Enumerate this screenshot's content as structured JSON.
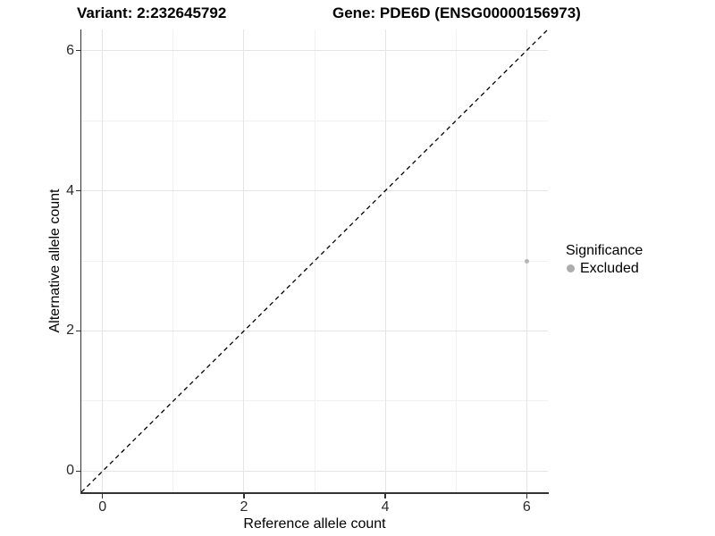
{
  "header": {
    "variant_title": "Variant: 2:232645792",
    "gene_title": "Gene: PDE6D (ENSG00000156973)"
  },
  "chart_data": {
    "type": "scatter",
    "title_left": "Variant: 2:232645792",
    "title_right": "Gene: PDE6D (ENSG00000156973)",
    "xlabel": "Reference allele count",
    "ylabel": "Alternative allele count",
    "xlim": [
      -0.3,
      6.3
    ],
    "ylim": [
      -0.3,
      6.3
    ],
    "x_ticks": [
      0,
      2,
      4,
      6
    ],
    "y_ticks": [
      0,
      2,
      4,
      6
    ],
    "x_minor_ticks": [
      1,
      3,
      5
    ],
    "y_minor_ticks": [
      1,
      3,
      5
    ],
    "grid": "major+minor",
    "points": [
      {
        "x": 6,
        "y": 3,
        "series": "Excluded",
        "color": "#b5b5b5",
        "radius": 2.5
      }
    ],
    "reference_line": {
      "type": "identity",
      "style": "dashed",
      "color": "#000000"
    },
    "legend": {
      "title": "Significance",
      "position": "right",
      "entries": [
        {
          "label": "Excluded",
          "color": "#adadad"
        }
      ]
    }
  },
  "colors": {
    "background": "#ffffff",
    "grid_major": "#e4e4e4",
    "grid_minor": "#f1f1f1",
    "axis_line": "#333333",
    "tick_text": "#2b2b2b",
    "title_text": "#000000"
  }
}
